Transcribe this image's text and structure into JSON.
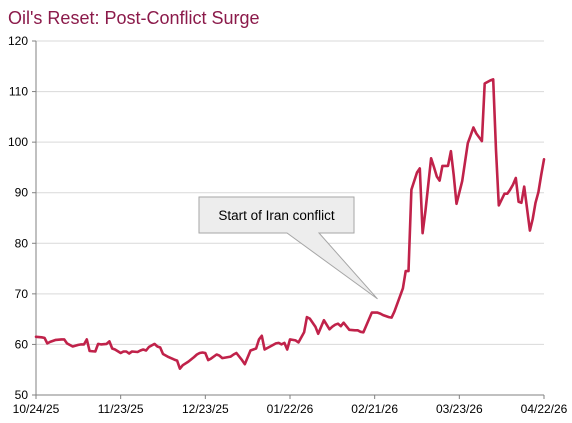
{
  "chart_data": {
    "type": "line",
    "title": "Oil's Reset: Post-Conflict Surge",
    "xlabel": "",
    "ylabel": "",
    "ylim": [
      50,
      120
    ],
    "yticks": [
      50,
      60,
      70,
      80,
      90,
      100,
      110,
      120
    ],
    "xlim": [
      "2025-10-24",
      "2026-04-22"
    ],
    "xticks": [
      "10/24/25",
      "11/23/25",
      "12/23/25",
      "01/22/26",
      "02/21/26",
      "03/23/26",
      "04/22/26"
    ],
    "grid": "horizontal",
    "legend": "none",
    "colors": {
      "line": "#C0224A",
      "title": "#8B1A4A",
      "grid": "#D9D9D9",
      "axis": "#808080"
    },
    "annotation": {
      "text": "Start of Iran conflict",
      "date": "2026-02-22",
      "value": 69
    },
    "series": [
      {
        "x": [
          "2025-10-24",
          "2025-10-26",
          "2025-10-27",
          "2025-10-28",
          "2025-10-29",
          "2025-10-31",
          "2025-11-02",
          "2025-11-03",
          "2025-11-04",
          "2025-11-06",
          "2025-11-08",
          "2025-11-09",
          "2025-11-10",
          "2025-11-11",
          "2025-11-12",
          "2025-11-14",
          "2025-11-15",
          "2025-11-16",
          "2025-11-18",
          "2025-11-19",
          "2025-11-20",
          "2025-11-21",
          "2025-11-23",
          "2025-11-24",
          "2025-11-25",
          "2025-11-26",
          "2025-11-27",
          "2025-11-29",
          "2025-11-30",
          "2025-12-01",
          "2025-12-02",
          "2025-12-03",
          "2025-12-05",
          "2025-12-06",
          "2025-12-07",
          "2025-12-08",
          "2025-12-10",
          "2025-12-12",
          "2025-12-13",
          "2025-12-14",
          "2025-12-15",
          "2025-12-17",
          "2025-12-19",
          "2025-12-20",
          "2025-12-21",
          "2025-12-22",
          "2025-12-23",
          "2025-12-24",
          "2025-12-25",
          "2025-12-27",
          "2025-12-28",
          "2025-12-29",
          "2025-12-31",
          "2026-01-01",
          "2026-01-02",
          "2026-01-03",
          "2026-01-05",
          "2026-01-06",
          "2026-01-08",
          "2026-01-09",
          "2026-01-10",
          "2026-01-11",
          "2026-01-12",
          "2026-01-13",
          "2026-01-15",
          "2026-01-17",
          "2026-01-18",
          "2026-01-19",
          "2026-01-20",
          "2026-01-21",
          "2026-01-22",
          "2026-01-24",
          "2026-01-25",
          "2026-01-27",
          "2026-01-28",
          "2026-01-29",
          "2026-01-31",
          "2026-02-01",
          "2026-02-03",
          "2026-02-05",
          "2026-02-06",
          "2026-02-07",
          "2026-02-08",
          "2026-02-09",
          "2026-02-10",
          "2026-02-12",
          "2026-02-14",
          "2026-02-15",
          "2026-02-16",
          "2026-02-17",
          "2026-02-20",
          "2026-02-22",
          "2026-02-23",
          "2026-02-24",
          "2026-02-25",
          "2026-02-26",
          "2026-02-27",
          "2026-02-28",
          "2026-03-03",
          "2026-03-04",
          "2026-03-05",
          "2026-03-06",
          "2026-03-08",
          "2026-03-09",
          "2026-03-10",
          "2026-03-11",
          "2026-03-13",
          "2026-03-14",
          "2026-03-15",
          "2026-03-16",
          "2026-03-17",
          "2026-03-19",
          "2026-03-20",
          "2026-03-21",
          "2026-03-22",
          "2026-03-24",
          "2026-03-26",
          "2026-03-27",
          "2026-03-28",
          "2026-03-29",
          "2026-03-31",
          "2026-04-01",
          "2026-04-03",
          "2026-04-04",
          "2026-04-05",
          "2026-04-06",
          "2026-04-08",
          "2026-04-09",
          "2026-04-10",
          "2026-04-11",
          "2026-04-12",
          "2026-04-13",
          "2026-04-14",
          "2026-04-15",
          "2026-04-17",
          "2026-04-18",
          "2026-04-19",
          "2026-04-20",
          "2026-04-21",
          "2026-04-22"
        ],
        "values": [
          61.5,
          61.4,
          61.3,
          60.2,
          60.5,
          60.9,
          61.0,
          61.0,
          60.2,
          59.6,
          59.9,
          60.0,
          60.0,
          61.0,
          58.7,
          58.6,
          60.1,
          60.0,
          60.1,
          60.6,
          59.2,
          59.0,
          58.3,
          58.6,
          58.6,
          58.2,
          58.6,
          58.5,
          58.8,
          59.0,
          58.8,
          59.5,
          60.1,
          59.6,
          59.4,
          58.1,
          57.5,
          57.0,
          56.8,
          55.2,
          55.9,
          56.6,
          57.5,
          58.0,
          58.3,
          58.4,
          58.3,
          56.9,
          57.2,
          58.0,
          57.8,
          57.3,
          57.5,
          57.6,
          58.0,
          58.3,
          56.9,
          56.1,
          58.8,
          59.0,
          59.2,
          61.0,
          61.7,
          59.0,
          59.6,
          60.2,
          60.3,
          60.0,
          60.3,
          59.0,
          61.0,
          60.8,
          60.4,
          62.4,
          65.4,
          65.1,
          63.5,
          62.1,
          64.8,
          63.0,
          63.5,
          63.9,
          64.1,
          63.6,
          64.3,
          62.9,
          62.8,
          62.8,
          62.5,
          62.4,
          66.3,
          66.3,
          66.1,
          65.8,
          65.6,
          65.4,
          65.3,
          66.5,
          71.1,
          74.5,
          74.5,
          90.6,
          94.0,
          94.8,
          82.0,
          86.5,
          96.8,
          95.1,
          93.2,
          92.4,
          95.3,
          95.3,
          98.2,
          93.5,
          87.8,
          92.3,
          99.8,
          101.3,
          102.9,
          101.7,
          100.2,
          111.6,
          112.2,
          112.4,
          98.4,
          87.5,
          89.8,
          89.8,
          90.6,
          91.6,
          92.9,
          88.2,
          88.0,
          91.2,
          82.5,
          84.8,
          88.0,
          90.1,
          93.5,
          96.6
        ]
      }
    ]
  }
}
